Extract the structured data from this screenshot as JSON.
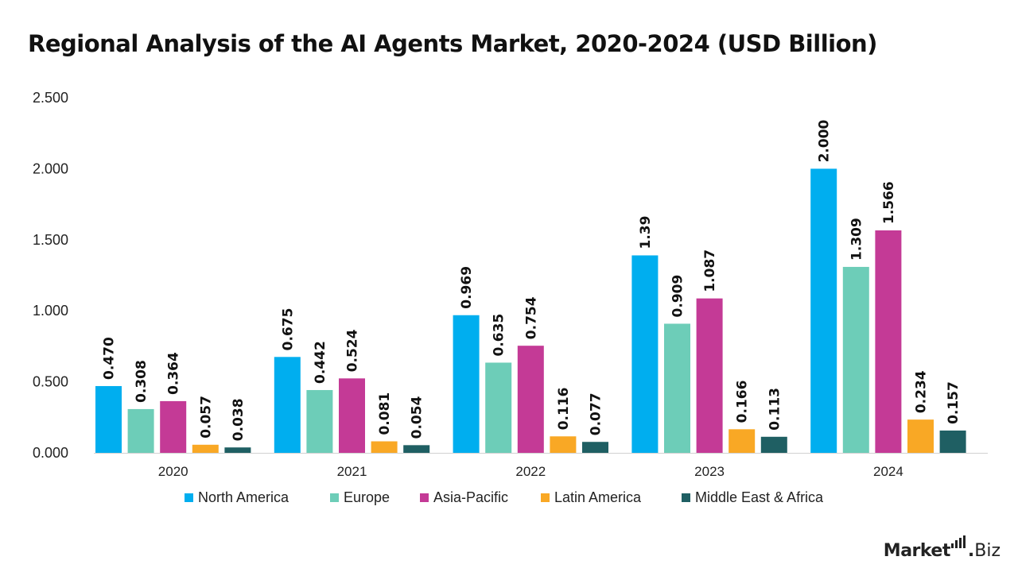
{
  "chart_data": {
    "type": "bar",
    "title": "Regional Analysis of the AI Agents Market, 2020-2024 (USD Billion)",
    "categories": [
      "2020",
      "2021",
      "2022",
      "2023",
      "2024"
    ],
    "ylim": [
      0,
      2.5
    ],
    "yticks": [
      "0.000",
      "0.500",
      "1.000",
      "1.500",
      "2.000",
      "2.500"
    ],
    "ytick_values": [
      0,
      0.5,
      1.0,
      1.5,
      2.0,
      2.5
    ],
    "grid": false,
    "legend_position": "bottom",
    "series": [
      {
        "name": "North America",
        "color": "#00AEEF",
        "values": [
          0.47,
          0.675,
          0.969,
          1.39,
          2.0
        ],
        "labels": [
          "0.470",
          "0.675",
          "0.969",
          "1.39",
          "2.000"
        ]
      },
      {
        "name": "Europe",
        "color": "#6DCDB8",
        "values": [
          0.308,
          0.442,
          0.635,
          0.909,
          1.309
        ],
        "labels": [
          "0.308",
          "0.442",
          "0.635",
          "0.909",
          "1.309"
        ]
      },
      {
        "name": "Asia-Pacific",
        "color": "#C43A96",
        "values": [
          0.364,
          0.524,
          0.754,
          1.087,
          1.566
        ],
        "labels": [
          "0.364",
          "0.524",
          "0.754",
          "1.087",
          "1.566"
        ]
      },
      {
        "name": "Latin America",
        "color": "#F9A825",
        "values": [
          0.057,
          0.081,
          0.116,
          0.166,
          0.234
        ],
        "labels": [
          "0.057",
          "0.081",
          "0.116",
          "0.166",
          "0.234"
        ]
      },
      {
        "name": "Middle East & Africa",
        "color": "#1F5F63",
        "values": [
          0.038,
          0.054,
          0.077,
          0.113,
          0.157
        ],
        "labels": [
          "0.038",
          "0.054",
          "0.077",
          "0.113",
          "0.157"
        ]
      }
    ]
  },
  "brand": {
    "main": "Market",
    "dot": ".",
    "tld": "Biz"
  }
}
